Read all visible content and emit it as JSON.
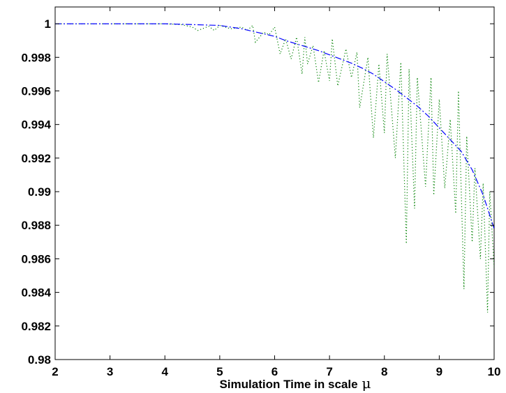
{
  "chart_data": {
    "type": "line",
    "title": "",
    "xlabel": "Simulation Time in scale",
    "xlabel_symbol": "μ",
    "ylabel": "",
    "xlim": [
      2,
      10
    ],
    "ylim": [
      0.98,
      1.001
    ],
    "grid": false,
    "x_ticks": [
      2,
      3,
      4,
      5,
      6,
      7,
      8,
      9,
      10
    ],
    "x_tick_labels": [
      "2",
      "3",
      "4",
      "5",
      "6",
      "7",
      "8",
      "9",
      "10"
    ],
    "y_ticks": [
      0.98,
      0.982,
      0.984,
      0.986,
      0.988,
      0.99,
      0.992,
      0.994,
      0.996,
      0.998,
      1
    ],
    "y_tick_labels": [
      "0.98",
      "0.982",
      "0.984",
      "0.986",
      "0.988",
      "0.99",
      "0.992",
      "0.994",
      "0.996",
      "0.998",
      "1"
    ],
    "series": [
      {
        "style": "dashdot",
        "color": "#0000ff",
        "x": [
          2.0,
          4.0,
          4.5,
          5.0,
          5.2,
          5.4,
          5.6,
          5.8,
          6.0,
          6.2,
          6.4,
          6.6,
          6.8,
          7.0,
          7.2,
          7.4,
          7.6,
          7.8,
          8.0,
          8.2,
          8.4,
          8.6,
          8.8,
          9.0,
          9.2,
          9.4,
          9.6,
          9.8,
          10.0
        ],
        "y": [
          1.0,
          1.0,
          0.99995,
          0.9999,
          0.9998,
          0.9997,
          0.99955,
          0.9994,
          0.99925,
          0.999,
          0.9988,
          0.9986,
          0.9984,
          0.99815,
          0.9979,
          0.99765,
          0.99735,
          0.997,
          0.99655,
          0.9961,
          0.9956,
          0.9951,
          0.9945,
          0.9938,
          0.9931,
          0.9924,
          0.9913,
          0.9898,
          0.9878
        ]
      },
      {
        "style": "dotted",
        "color": "#008000",
        "x": [
          2.0,
          4.0,
          4.3,
          4.5,
          4.6,
          4.8,
          4.9,
          5.0,
          5.2,
          5.4,
          5.5,
          5.6,
          5.65,
          5.8,
          5.9,
          6.0,
          6.1,
          6.2,
          6.3,
          6.4,
          6.5,
          6.55,
          6.6,
          6.7,
          6.8,
          6.9,
          7.0,
          7.05,
          7.15,
          7.3,
          7.4,
          7.5,
          7.55,
          7.7,
          7.8,
          7.9,
          8.0,
          8.05,
          8.2,
          8.3,
          8.4,
          8.45,
          8.55,
          8.6,
          8.75,
          8.85,
          8.9,
          9.0,
          9.1,
          9.2,
          9.3,
          9.35,
          9.45,
          9.5,
          9.6,
          9.65,
          9.75,
          9.8,
          9.88,
          9.92,
          10.0
        ],
        "y": [
          1.0,
          1.0,
          0.99995,
          0.9998,
          0.9996,
          0.99985,
          0.9996,
          0.9999,
          0.9997,
          0.9998,
          0.9996,
          0.9999,
          0.9989,
          0.9995,
          0.99935,
          0.9998,
          0.9982,
          0.9991,
          0.9979,
          0.9992,
          0.997,
          0.9992,
          0.9976,
          0.9987,
          0.9965,
          0.9984,
          0.9966,
          0.9991,
          0.9963,
          0.9985,
          0.9968,
          0.9983,
          0.995,
          0.998,
          0.9932,
          0.9976,
          0.9935,
          0.9982,
          0.992,
          0.9977,
          0.9869,
          0.9973,
          0.989,
          0.9968,
          0.9903,
          0.9968,
          0.9898,
          0.9955,
          0.9902,
          0.9943,
          0.9887,
          0.996,
          0.9842,
          0.9933,
          0.987,
          0.9914,
          0.986,
          0.9905,
          0.9828,
          0.99,
          0.9855
        ]
      }
    ]
  }
}
